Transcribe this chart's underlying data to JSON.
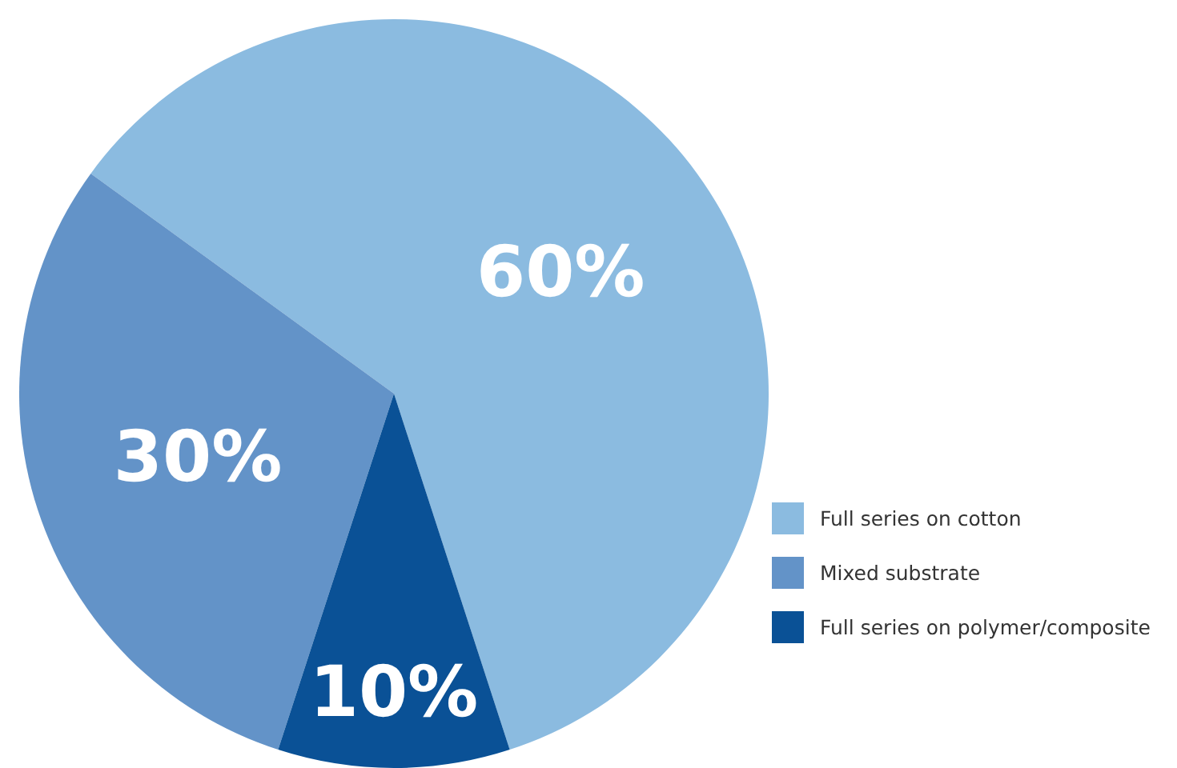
{
  "chart_data": {
    "type": "pie",
    "categories": [
      "Full series on cotton",
      "Mixed substrate",
      "Full series on polymer/composite"
    ],
    "values": [
      60,
      30,
      10
    ],
    "colors": [
      "#8bbbe0",
      "#6393c8",
      "#0a5196"
    ],
    "value_labels": [
      "60%",
      "30%",
      "10%"
    ],
    "legend": "bottom right"
  }
}
